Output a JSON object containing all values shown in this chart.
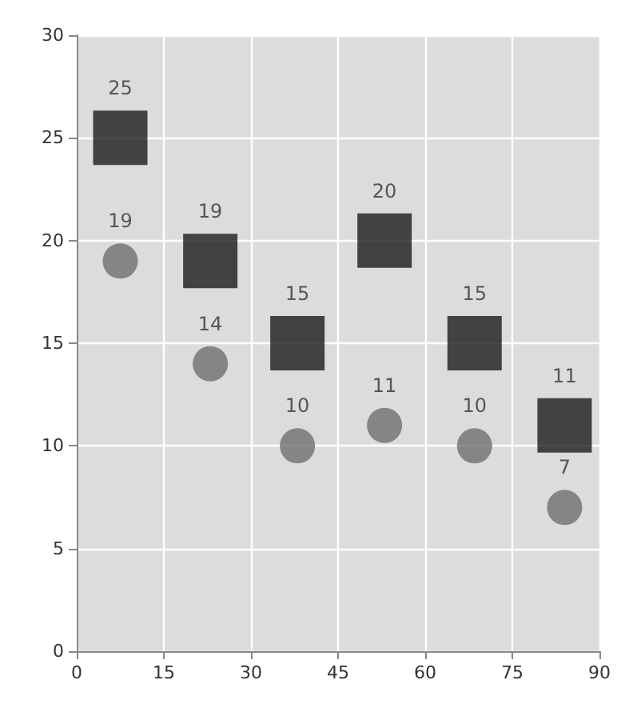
{
  "chart_data": {
    "type": "scatter",
    "data_labels": true,
    "grid": true,
    "xlim": [
      0,
      90
    ],
    "xticks": [
      0,
      15,
      30,
      45,
      60,
      75,
      90
    ],
    "ylim": [
      0,
      30
    ],
    "yticks": [
      0,
      5,
      10,
      15,
      20,
      25,
      30
    ],
    "series": [
      {
        "color": "#1c1c1c",
        "marker": "square",
        "x": [
          7.5,
          23,
          38,
          53,
          68.5,
          84
        ],
        "values": [
          25,
          19,
          15,
          20,
          15,
          11
        ]
      },
      {
        "color": "#6f6f6f",
        "marker": "circle",
        "x": [
          7.5,
          23,
          38,
          53,
          68.5,
          84
        ],
        "values": [
          19,
          14,
          10,
          11,
          10,
          7
        ]
      }
    ]
  }
}
